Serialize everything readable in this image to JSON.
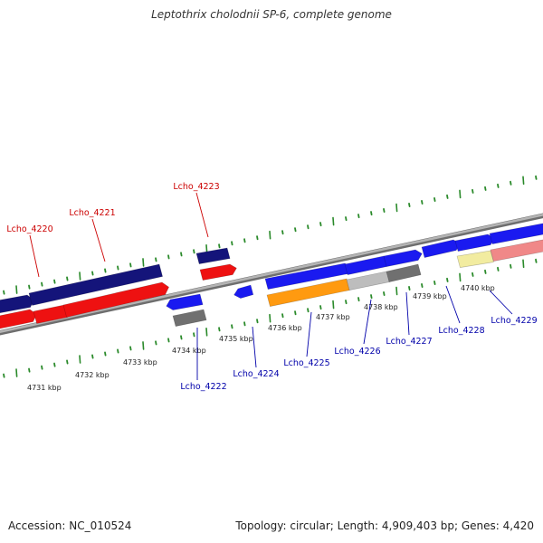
{
  "title": "Leptothrix cholodnii SP-6, complete genome",
  "footer": {
    "accession": "Accession: NC_010524",
    "summary": "Topology: circular; Length: 4,909,403 bp; Genes: 4,420"
  },
  "colors": {
    "backbone": "#8c8c8c",
    "forward_label": "#cc0000",
    "reverse_label": "#0000aa",
    "tick": "#2a8a2a",
    "navy": "#14147a",
    "red": "#ee1111",
    "blue": "#1a1af0",
    "gray": "#707070",
    "light_gray": "#bdbdbd",
    "orange": "#ff9a10",
    "yellow": "#f2eca0",
    "pink": "#f08888"
  },
  "scale": {
    "ticks": [
      "4731 kbp",
      "4732 kbp",
      "4733 kbp",
      "4734 kbp",
      "4735 kbp",
      "4736 kbp",
      "4737 kbp",
      "4738 kbp",
      "4739 kbp",
      "4740 kbp"
    ]
  },
  "gene_labels": [
    "Lcho_4220",
    "Lcho_4221",
    "Lcho_4223",
    "Lcho_4222",
    "Lcho_4224",
    "Lcho_4225",
    "Lcho_4226",
    "Lcho_4227",
    "Lcho_4228",
    "Lcho_4229"
  ]
}
